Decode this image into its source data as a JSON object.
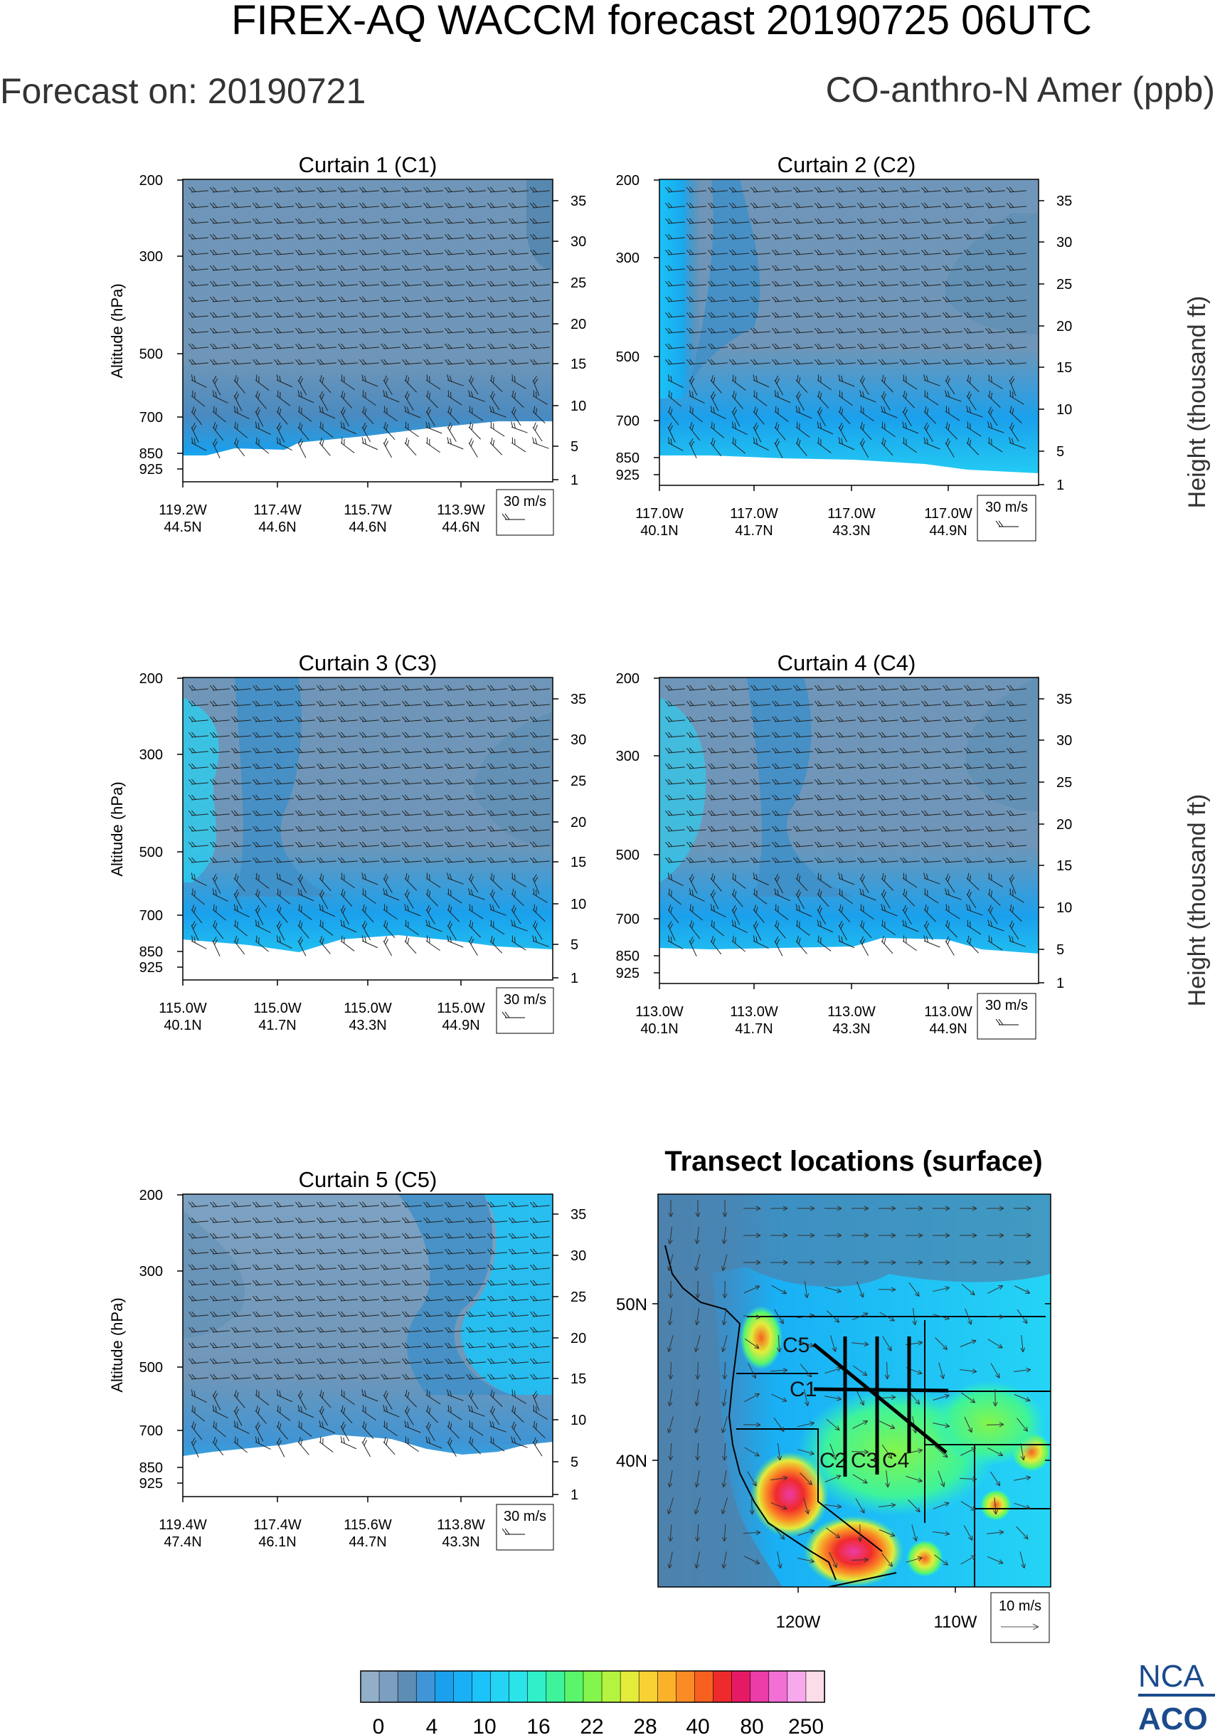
{
  "header": {
    "title": "FIREX-AQ WACCM forecast 20190725 06UTC",
    "forecast_on": "Forecast on: 20190721",
    "variable": "CO-anthro-N Amer (ppb)"
  },
  "colors": {
    "levels": [
      "#92aec8",
      "#7c9ec0",
      "#5c8db3",
      "#3f95d5",
      "#1aa0ec",
      "#19b0f5",
      "#1bc3f8",
      "#25d4f5",
      "#2ae4ea",
      "#2ff0c8",
      "#3ef39a",
      "#5af56a",
      "#84f54b",
      "#b4f440",
      "#e3ec3b",
      "#f8d234",
      "#fbb22b",
      "#fb8b25",
      "#f8601f",
      "#ef2a2c",
      "#e61a64",
      "#ec3ca8",
      "#f26fd4",
      "#f8a8ec",
      "#fbdce9"
    ],
    "land_mask": "#ffffff"
  },
  "curtain_common": {
    "left_ticks": [
      "200",
      "300",
      "500",
      "700",
      "850",
      "925"
    ],
    "left_label": "Altitude (hPa)",
    "right_ticks": [
      "35",
      "30",
      "25",
      "20",
      "15",
      "10",
      "5",
      "1"
    ],
    "right_label": "Height (thousand ft)",
    "wind_ref": "30 m/s"
  },
  "chart_data": [
    {
      "type": "heatmap",
      "id": "c1",
      "title": "Curtain 1 (C1)",
      "pressure_ticks_hPa": [
        200,
        300,
        500,
        700,
        850,
        925
      ],
      "height_ticks_kft": [
        35,
        30,
        25,
        20,
        15,
        10,
        5,
        1
      ],
      "x_ticks": [
        [
          "119.2W",
          "44.5N"
        ],
        [
          "117.4W",
          "44.6N"
        ],
        [
          "115.7W",
          "44.6N"
        ],
        [
          "113.9W",
          "44.6N"
        ]
      ],
      "wind_reference": "30 m/s"
    },
    {
      "type": "heatmap",
      "id": "c2",
      "title": "Curtain 2 (C2)",
      "pressure_ticks_hPa": [
        200,
        300,
        500,
        700,
        850,
        925
      ],
      "height_ticks_kft": [
        35,
        30,
        25,
        20,
        15,
        10,
        5,
        1
      ],
      "x_ticks": [
        [
          "117.0W",
          "40.1N"
        ],
        [
          "117.0W",
          "41.7N"
        ],
        [
          "117.0W",
          "43.3N"
        ],
        [
          "117.0W",
          "44.9N"
        ]
      ],
      "wind_reference": "30 m/s"
    },
    {
      "type": "heatmap",
      "id": "c3",
      "title": "Curtain 3 (C3)",
      "pressure_ticks_hPa": [
        200,
        300,
        500,
        700,
        850,
        925
      ],
      "height_ticks_kft": [
        35,
        30,
        25,
        20,
        15,
        10,
        5,
        1
      ],
      "x_ticks": [
        [
          "115.0W",
          "40.1N"
        ],
        [
          "115.0W",
          "41.7N"
        ],
        [
          "115.0W",
          "43.3N"
        ],
        [
          "115.0W",
          "44.9N"
        ]
      ],
      "wind_reference": "30 m/s"
    },
    {
      "type": "heatmap",
      "id": "c4",
      "title": "Curtain 4 (C4)",
      "pressure_ticks_hPa": [
        200,
        300,
        500,
        700,
        850,
        925
      ],
      "height_ticks_kft": [
        35,
        30,
        25,
        20,
        15,
        10,
        5,
        1
      ],
      "x_ticks": [
        [
          "113.0W",
          "40.1N"
        ],
        [
          "113.0W",
          "41.7N"
        ],
        [
          "113.0W",
          "43.3N"
        ],
        [
          "113.0W",
          "44.9N"
        ]
      ],
      "wind_reference": "30 m/s"
    },
    {
      "type": "heatmap",
      "id": "c5",
      "title": "Curtain 5 (C5)",
      "pressure_ticks_hPa": [
        200,
        300,
        500,
        700,
        850,
        925
      ],
      "height_ticks_kft": [
        35,
        30,
        25,
        20,
        15,
        10,
        5,
        1
      ],
      "x_ticks": [
        [
          "119.4W",
          "47.4N"
        ],
        [
          "117.4W",
          "46.1N"
        ],
        [
          "115.6W",
          "44.7N"
        ],
        [
          "113.8W",
          "43.3N"
        ]
      ],
      "wind_reference": "30 m/s"
    },
    {
      "type": "heatmap",
      "id": "map",
      "title": "Transect locations (surface)",
      "lat_ticks": [
        "50N",
        "40N"
      ],
      "lon_ticks": [
        "120W",
        "110W"
      ],
      "wind_reference": "10 m/s",
      "transects": [
        {
          "label": "C1",
          "from": [
            -119.2,
            44.5
          ],
          "to": [
            -113.9,
            44.6
          ]
        },
        {
          "label": "C2",
          "from": [
            -117.0,
            40.1
          ],
          "to": [
            -117.0,
            44.9
          ]
        },
        {
          "label": "C3",
          "from": [
            -115.0,
            40.1
          ],
          "to": [
            -115.0,
            44.9
          ]
        },
        {
          "label": "C4",
          "from": [
            -113.0,
            40.1
          ],
          "to": [
            -113.0,
            44.9
          ]
        },
        {
          "label": "C5",
          "from": [
            -119.4,
            47.4
          ],
          "to": [
            -113.8,
            43.3
          ]
        }
      ]
    }
  ],
  "colorbar": {
    "labels": [
      "0",
      "4",
      "10",
      "16",
      "22",
      "28",
      "40",
      "80",
      "250"
    ]
  },
  "logo": {
    "line1": "NCA",
    "line2": "ACO"
  }
}
